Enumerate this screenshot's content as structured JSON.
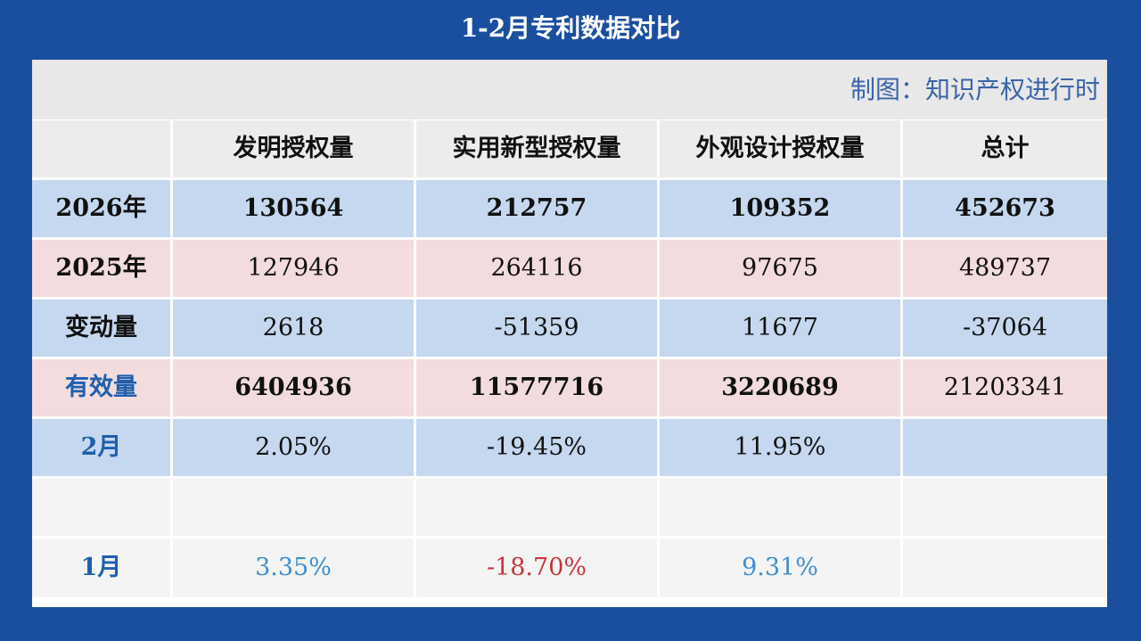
{
  "title": "1-2月专利数据对比",
  "credit": "制图：知识产权进行时",
  "columns": [
    "",
    "发明授权量",
    "实用新型授权量",
    "外观设计授权量",
    "总计"
  ],
  "rows": {
    "r2026": {
      "label": "2026年",
      "invention": "130564",
      "utility": "212757",
      "design": "109352",
      "total": "452673"
    },
    "r2025": {
      "label": "2025年",
      "invention": "127946",
      "utility": "264116",
      "design": "97675",
      "total": "489737"
    },
    "change": {
      "label": "变动量",
      "invention": "2618",
      "utility": "-51359",
      "design": "11677",
      "total": "-37064"
    },
    "valid": {
      "label": "有效量",
      "invention": "6404936",
      "utility": "11577716",
      "design": "3220689",
      "total": "21203341"
    },
    "feb": {
      "label": "2月",
      "invention": "2.05%",
      "utility": "-19.45%",
      "design": "11.95%",
      "total": ""
    },
    "jan": {
      "label": "1月",
      "invention": "3.35%",
      "utility": "-18.70%",
      "design": "9.31%",
      "total": ""
    }
  },
  "colors": {
    "background": "#1a4fa0",
    "positive": "#1f78c4",
    "negative": "#c0162c",
    "blue_row": "#c5d8ef",
    "pink_row": "#f2dcdd"
  }
}
